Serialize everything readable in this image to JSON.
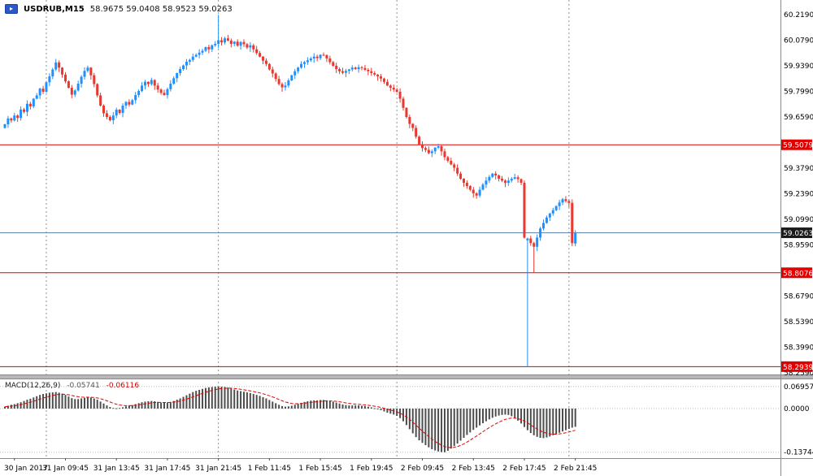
{
  "header": {
    "symbol": "USDRUB,M15",
    "ohlc": "58.9675 59.0408 58.9523 59.0263"
  },
  "macd_header": {
    "label": "MACD(12,26,9)",
    "main": "-0.05741",
    "signal": "-0.06116"
  },
  "icons": {
    "one_click_arrow": "▸"
  },
  "colors": {
    "bull": "#1e90ff",
    "bear": "#e8382f",
    "hline": "#e00000",
    "bid_line": "#5580ab",
    "badge_red": "#e00000",
    "badge_bid_bg": "#1a1a1a",
    "badge_text": "#ffffff",
    "macd_bar": "#4d4d4d",
    "macd_signal": "#e00000",
    "separator": "#909090",
    "axis_text": "#000000",
    "axis_border": "#8a8a8a",
    "splitter": "#b8b8b8"
  },
  "chart_data": {
    "type": "candlestick",
    "title": "USDRUB,M15",
    "symbol": "USDRUB",
    "timeframe": "M15",
    "grid": "off",
    "ylim": [
      58.255,
      60.3
    ],
    "last_candle": {
      "open": 58.9675,
      "high": 59.0408,
      "low": 58.9523,
      "close": 59.0263
    },
    "bid_price": 59.0263,
    "horizontal_lines": [
      59.5079,
      58.8076,
      58.2939
    ],
    "price_axis_ticks": [
      60.219,
      60.079,
      59.939,
      59.799,
      59.659,
      59.519,
      59.379,
      59.239,
      59.099,
      58.959,
      58.819,
      58.679,
      58.539,
      58.399,
      58.259
    ],
    "day_separators_at": [
      13,
      67,
      123,
      177
    ],
    "time_labels": [
      {
        "i": 3,
        "label": "30 Jan 2017"
      },
      {
        "i": 19,
        "label": "31 Jan 09:45"
      },
      {
        "i": 35,
        "label": "31 Jan 13:45"
      },
      {
        "i": 51,
        "label": "31 Jan 17:45"
      },
      {
        "i": 67,
        "label": "31 Jan 21:45"
      },
      {
        "i": 83,
        "label": "1 Feb 11:45"
      },
      {
        "i": 99,
        "label": "1 Feb 15:45"
      },
      {
        "i": 115,
        "label": "1 Feb 19:45"
      },
      {
        "i": 131,
        "label": "2 Feb 09:45"
      },
      {
        "i": 147,
        "label": "2 Feb 13:45"
      },
      {
        "i": 163,
        "label": "2 Feb 17:45"
      },
      {
        "i": 179,
        "label": "2 Feb 21:45"
      }
    ],
    "candles": {
      "first_open": 59.6,
      "closes": [
        59.62,
        59.652,
        59.641,
        59.668,
        59.655,
        59.701,
        59.688,
        59.732,
        59.718,
        59.76,
        59.778,
        59.815,
        59.798,
        59.85,
        59.882,
        59.92,
        59.958,
        59.93,
        59.892,
        59.855,
        59.82,
        59.782,
        59.805,
        59.842,
        59.88,
        59.912,
        59.93,
        59.888,
        59.84,
        59.778,
        59.722,
        59.68,
        59.66,
        59.642,
        59.668,
        59.7,
        59.682,
        59.722,
        59.742,
        59.728,
        59.752,
        59.78,
        59.802,
        59.832,
        59.852,
        59.84,
        59.862,
        59.832,
        59.81,
        59.792,
        59.78,
        59.812,
        59.842,
        59.872,
        59.9,
        59.922,
        59.942,
        59.962,
        59.972,
        59.99,
        60.0,
        60.012,
        60.022,
        60.042,
        60.03,
        60.052,
        60.06,
        60.08,
        60.068,
        60.09,
        60.078,
        60.06,
        60.072,
        60.05,
        60.07,
        60.058,
        60.04,
        60.052,
        60.03,
        60.01,
        59.99,
        59.968,
        59.95,
        59.92,
        59.898,
        59.868,
        59.84,
        59.822,
        59.832,
        59.86,
        59.888,
        59.91,
        59.93,
        59.95,
        59.96,
        59.97,
        59.98,
        59.99,
        59.982,
        60.0,
        59.998,
        59.98,
        59.96,
        59.94,
        59.922,
        59.91,
        59.902,
        59.912,
        59.92,
        59.93,
        59.922,
        59.932,
        59.928,
        59.918,
        59.91,
        59.9,
        59.892,
        59.882,
        59.87,
        59.852,
        59.832,
        59.82,
        59.81,
        59.798,
        59.76,
        59.71,
        59.66,
        59.622,
        59.6,
        59.552,
        59.51,
        59.49,
        59.48,
        59.462,
        59.472,
        59.492,
        59.5,
        59.472,
        59.44,
        59.42,
        59.4,
        59.382,
        59.35,
        59.322,
        59.3,
        59.282,
        59.262,
        59.242,
        59.23,
        59.262,
        59.29,
        59.312,
        59.332,
        59.35,
        59.34,
        59.322,
        59.312,
        59.3,
        59.312,
        59.322,
        59.33,
        59.32,
        59.3,
        59.0,
        58.995,
        58.97,
        58.95,
        59.0,
        59.05,
        59.08,
        59.11,
        59.132,
        59.15,
        59.172,
        59.192,
        59.21,
        59.2,
        59.19,
        58.97,
        59.0263
      ],
      "overrides": {
        "67": {
          "h": 60.219
        },
        "164": {
          "o": 58.985,
          "c": 58.995,
          "l": 58.2939
        },
        "166": {
          "l": 58.8076
        },
        "179": {
          "o": 58.9675,
          "h": 59.0408,
          "l": 58.9523
        }
      }
    },
    "macd": {
      "params": [
        12,
        26,
        9
      ],
      "last_main": -0.05741,
      "last_signal": -0.06116,
      "axis_ticks": [
        {
          "v": 0.06957,
          "label": "0.06957"
        },
        {
          "v": 0,
          "label": "0.0000"
        },
        {
          "v": -0.13744,
          "label": "-0.13744"
        }
      ],
      "histogram": [
        0.006,
        0.009,
        0.012,
        0.014,
        0.017,
        0.02,
        0.024,
        0.028,
        0.031,
        0.035,
        0.039,
        0.043,
        0.046,
        0.048,
        0.05,
        0.051,
        0.052,
        0.05,
        0.047,
        0.043,
        0.038,
        0.033,
        0.03,
        0.03,
        0.032,
        0.034,
        0.036,
        0.035,
        0.032,
        0.028,
        0.022,
        0.016,
        0.01,
        0.005,
        0.002,
        0.001,
        0.002,
        0.004,
        0.007,
        0.009,
        0.011,
        0.014,
        0.017,
        0.02,
        0.022,
        0.023,
        0.024,
        0.023,
        0.021,
        0.019,
        0.018,
        0.019,
        0.021,
        0.024,
        0.028,
        0.032,
        0.037,
        0.042,
        0.047,
        0.052,
        0.056,
        0.059,
        0.062,
        0.065,
        0.067,
        0.068,
        0.069,
        0.0696,
        0.069,
        0.068,
        0.066,
        0.063,
        0.06,
        0.057,
        0.055,
        0.053,
        0.051,
        0.049,
        0.046,
        0.043,
        0.04,
        0.036,
        0.032,
        0.027,
        0.022,
        0.017,
        0.012,
        0.008,
        0.006,
        0.007,
        0.009,
        0.012,
        0.015,
        0.018,
        0.021,
        0.023,
        0.025,
        0.026,
        0.026,
        0.027,
        0.027,
        0.026,
        0.024,
        0.022,
        0.019,
        0.016,
        0.013,
        0.011,
        0.01,
        0.01,
        0.01,
        0.01,
        0.009,
        0.008,
        0.006,
        0.004,
        0.001,
        -0.002,
        -0.005,
        -0.009,
        -0.013,
        -0.016,
        -0.019,
        -0.023,
        -0.03,
        -0.04,
        -0.052,
        -0.065,
        -0.078,
        -0.09,
        -0.1,
        -0.108,
        -0.115,
        -0.122,
        -0.128,
        -0.132,
        -0.135,
        -0.137,
        -0.1374,
        -0.133,
        -0.126,
        -0.118,
        -0.11,
        -0.101,
        -0.092,
        -0.083,
        -0.075,
        -0.067,
        -0.06,
        -0.053,
        -0.046,
        -0.04,
        -0.034,
        -0.029,
        -0.025,
        -0.022,
        -0.02,
        -0.019,
        -0.02,
        -0.024,
        -0.03,
        -0.038,
        -0.047,
        -0.058,
        -0.068,
        -0.077,
        -0.084,
        -0.089,
        -0.092,
        -0.093,
        -0.091,
        -0.088,
        -0.084,
        -0.08,
        -0.076,
        -0.072,
        -0.068,
        -0.064,
        -0.06,
        -0.0574
      ]
    }
  }
}
